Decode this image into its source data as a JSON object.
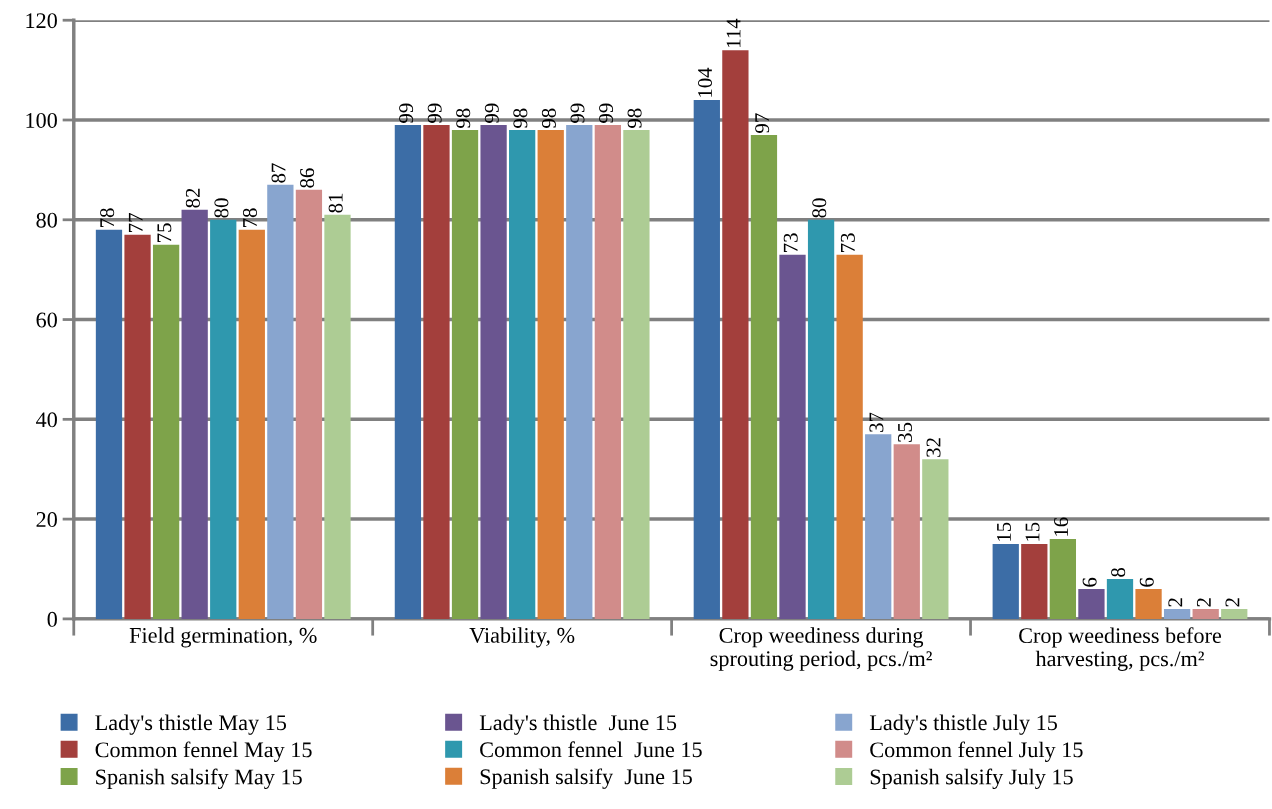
{
  "chart_data": {
    "type": "bar",
    "categories": [
      "Field germination, %",
      "Viability, %",
      "Crop weediness during\nsprouting period, pcs./m²",
      "Crop weediness before\nharvesting, pcs./m²"
    ],
    "series": [
      {
        "name": "Lady's thistle May 15",
        "color": "#3c6da6",
        "values": [
          78,
          99,
          104,
          15
        ]
      },
      {
        "name": "Common fennel May 15",
        "color": "#a33f3c",
        "values": [
          77,
          99,
          114,
          15
        ]
      },
      {
        "name": "Spanish salsify May 15",
        "color": "#7ea34a",
        "values": [
          75,
          98,
          97,
          16
        ]
      },
      {
        "name": "Lady's thistle  June 15",
        "color": "#6a5590",
        "values": [
          82,
          99,
          73,
          6
        ]
      },
      {
        "name": "Common fennel  June 15",
        "color": "#2f98ae",
        "values": [
          80,
          98,
          80,
          8
        ]
      },
      {
        "name": "Spanish salsify  June 15",
        "color": "#db7f38",
        "values": [
          78,
          98,
          73,
          6
        ]
      },
      {
        "name": "Lady's thistle July 15",
        "color": "#88a5cf",
        "values": [
          87,
          99,
          37,
          2
        ]
      },
      {
        "name": "Common fennel July 15",
        "color": "#d18c8a",
        "values": [
          86,
          99,
          35,
          2
        ]
      },
      {
        "name": "Spanish salsify July 15",
        "color": "#adcc94",
        "values": [
          81,
          98,
          32,
          2
        ]
      }
    ],
    "ylim": [
      0,
      120
    ],
    "yticks": [
      0,
      20,
      40,
      60,
      80,
      100,
      120
    ],
    "grid": "y",
    "legend": "bottom",
    "data_labels": true
  }
}
